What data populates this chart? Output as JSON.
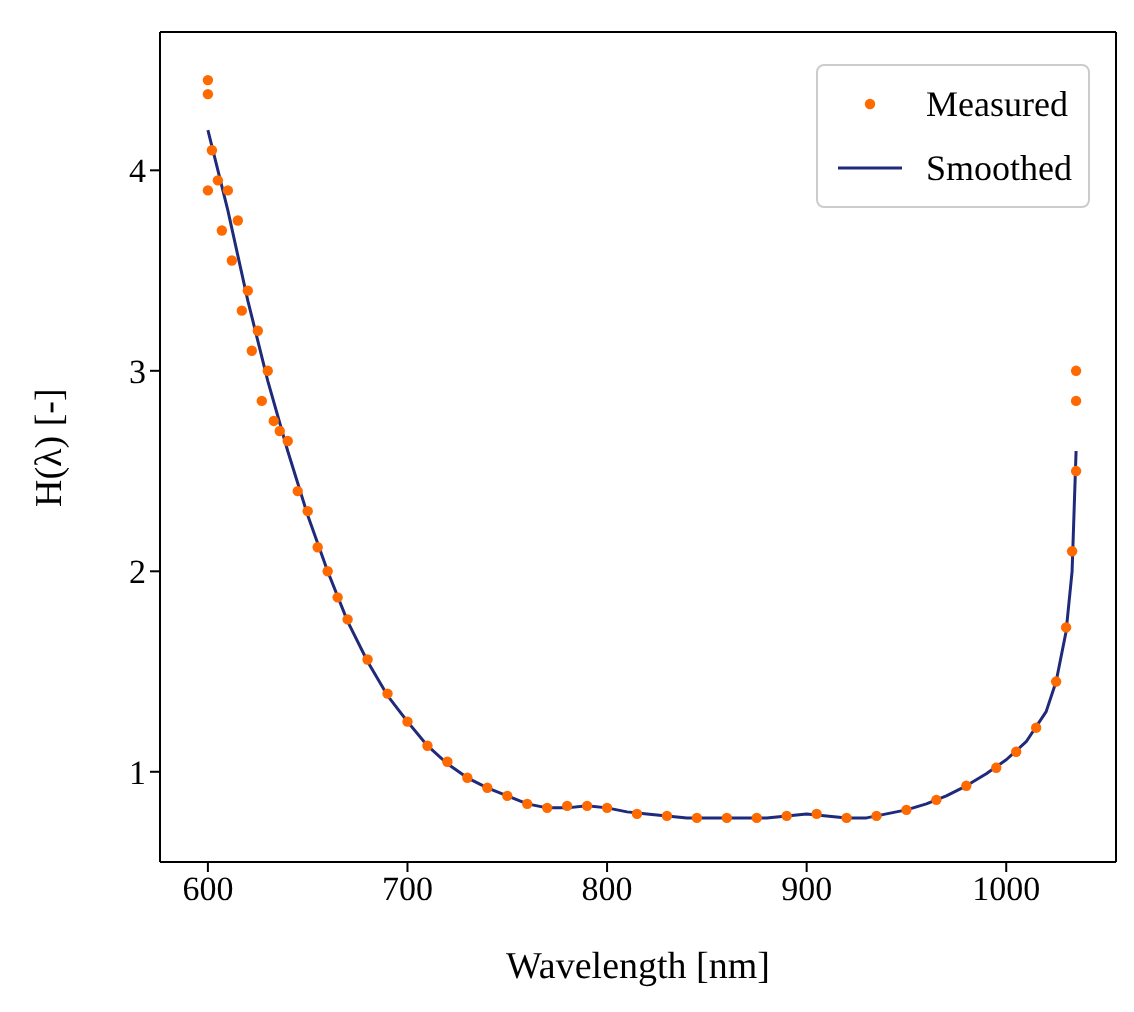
{
  "chart_data": {
    "type": "scatter",
    "xlabel": "Wavelength [nm]",
    "ylabel": "H(λ) [-]",
    "xlim": [
      576,
      1055
    ],
    "ylim": [
      0.55,
      4.69
    ],
    "xticks": [
      600,
      700,
      800,
      900,
      1000
    ],
    "yticks": [
      1,
      2,
      3,
      4
    ],
    "legend": "top right",
    "series": [
      {
        "name": "Measured",
        "marker": "circle",
        "color": "#ff6a00",
        "x": [
          600,
          600,
          600,
          602,
          605,
          607,
          610,
          612,
          615,
          617,
          620,
          622,
          625,
          627,
          630,
          633,
          636,
          640,
          645,
          650,
          655,
          660,
          665,
          670,
          680,
          690,
          700,
          710,
          720,
          730,
          740,
          750,
          760,
          770,
          780,
          790,
          800,
          815,
          830,
          845,
          860,
          875,
          890,
          905,
          920,
          935,
          950,
          965,
          980,
          995,
          1005,
          1015,
          1025,
          1030,
          1033,
          1035,
          1035,
          1035
        ],
        "values": [
          4.45,
          4.38,
          3.9,
          4.1,
          3.95,
          3.7,
          3.9,
          3.55,
          3.75,
          3.3,
          3.4,
          3.1,
          3.2,
          2.85,
          3.0,
          2.75,
          2.7,
          2.65,
          2.4,
          2.3,
          2.12,
          2.0,
          1.87,
          1.76,
          1.56,
          1.39,
          1.25,
          1.13,
          1.05,
          0.97,
          0.92,
          0.88,
          0.84,
          0.82,
          0.83,
          0.83,
          0.82,
          0.79,
          0.78,
          0.77,
          0.77,
          0.77,
          0.78,
          0.79,
          0.77,
          0.78,
          0.81,
          0.86,
          0.93,
          1.02,
          1.1,
          1.22,
          1.45,
          1.72,
          2.1,
          2.5,
          2.85,
          3.0
        ]
      },
      {
        "name": "Smoothed",
        "type": "line",
        "marker": "none",
        "line_style": "solid",
        "color": "#1f2a7a",
        "x": [
          600,
          610,
          620,
          630,
          640,
          650,
          660,
          670,
          680,
          690,
          700,
          710,
          720,
          730,
          740,
          750,
          760,
          770,
          780,
          790,
          800,
          810,
          820,
          830,
          840,
          850,
          860,
          870,
          880,
          890,
          900,
          910,
          920,
          930,
          940,
          950,
          960,
          970,
          980,
          990,
          1000,
          1010,
          1020,
          1025,
          1030,
          1033,
          1035
        ],
        "values": [
          4.2,
          3.8,
          3.35,
          2.95,
          2.6,
          2.28,
          2.0,
          1.75,
          1.55,
          1.38,
          1.25,
          1.13,
          1.04,
          0.97,
          0.92,
          0.88,
          0.84,
          0.82,
          0.82,
          0.83,
          0.82,
          0.8,
          0.79,
          0.78,
          0.77,
          0.77,
          0.77,
          0.77,
          0.77,
          0.78,
          0.79,
          0.78,
          0.77,
          0.77,
          0.79,
          0.81,
          0.84,
          0.88,
          0.93,
          0.99,
          1.06,
          1.15,
          1.3,
          1.45,
          1.7,
          2.0,
          2.6
        ]
      }
    ]
  }
}
